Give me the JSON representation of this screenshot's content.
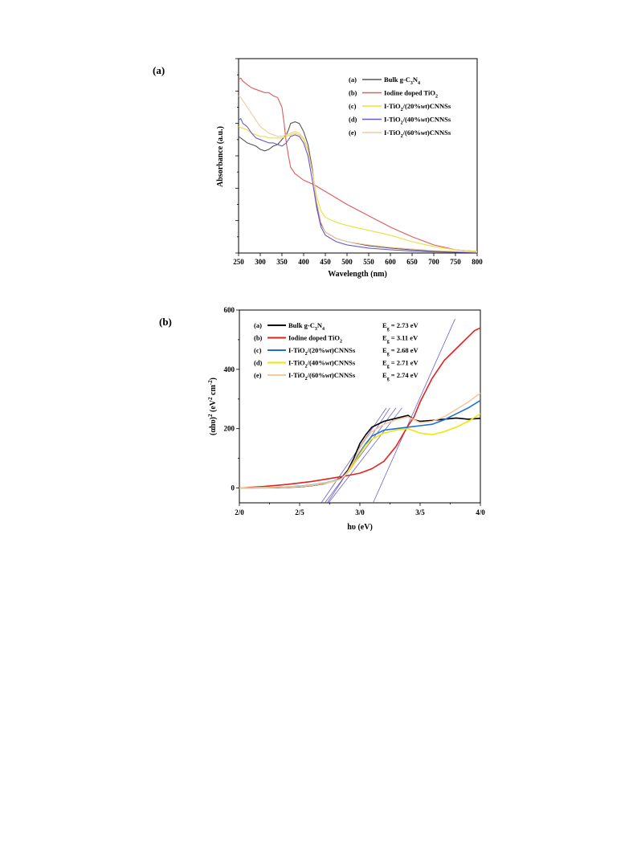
{
  "chart_data": [
    {
      "panel_label": "(a)",
      "type": "line",
      "xlabel": "Wavelength (nm)",
      "ylabel": "Absorbance (a.u.)",
      "xlim": [
        250,
        800
      ],
      "ylim": [
        0,
        1.2
      ],
      "x_ticks": [
        "250",
        "300",
        "350",
        "400",
        "450",
        "500",
        "550",
        "600",
        "650",
        "700",
        "750",
        "800"
      ],
      "y_tick_labels_shown": false,
      "legend_placement": "top-right",
      "series": [
        {
          "key": "(a)",
          "label": "Bulk g-C3N4",
          "label_main": "Bulk g-C",
          "sub1": "3",
          "mid": "N",
          "sub2": "4",
          "tail": "",
          "color": "#555555",
          "x": [
            250,
            260,
            270,
            280,
            290,
            300,
            310,
            320,
            330,
            340,
            350,
            360,
            365,
            370,
            380,
            390,
            400,
            410,
            420,
            430,
            440,
            450,
            475,
            500,
            550,
            600,
            650,
            700,
            750,
            800
          ],
          "y": [
            0.72,
            0.7,
            0.68,
            0.67,
            0.66,
            0.64,
            0.63,
            0.64,
            0.66,
            0.67,
            0.7,
            0.73,
            0.76,
            0.8,
            0.81,
            0.8,
            0.75,
            0.67,
            0.52,
            0.3,
            0.18,
            0.13,
            0.09,
            0.07,
            0.045,
            0.03,
            0.02,
            0.012,
            0.008,
            0.005
          ]
        },
        {
          "key": "(b)",
          "label": "Iodine doped TiO2",
          "label_main": "Iodine doped TiO",
          "sub1": "2",
          "mid": "",
          "sub2": "",
          "tail": "",
          "color": "#e05a5a",
          "x": [
            250,
            255,
            260,
            270,
            280,
            290,
            300,
            310,
            320,
            330,
            340,
            350,
            355,
            360,
            365,
            370,
            380,
            390,
            400,
            425,
            450,
            500,
            550,
            600,
            650,
            700,
            750,
            800
          ],
          "y": [
            1.07,
            1.08,
            1.06,
            1.04,
            1.02,
            1.01,
            1.0,
            0.99,
            0.99,
            0.97,
            0.96,
            0.9,
            0.8,
            0.68,
            0.6,
            0.53,
            0.49,
            0.47,
            0.45,
            0.42,
            0.38,
            0.3,
            0.23,
            0.16,
            0.1,
            0.05,
            0.02,
            0.01
          ]
        },
        {
          "key": "(c)",
          "label": "I-TiO2/(20%wt)CNNSs",
          "label_main": "I-TiO",
          "sub1": "2",
          "mid": "/(20%",
          "sub2": "",
          "tail": "wt",
          "after": ")CNNSs",
          "color": "#e8e23a",
          "x": [
            250,
            260,
            270,
            280,
            290,
            300,
            310,
            320,
            330,
            340,
            350,
            360,
            370,
            380,
            390,
            400,
            410,
            420,
            430,
            440,
            450,
            475,
            500,
            550,
            600,
            650,
            700,
            750,
            800
          ],
          "y": [
            0.78,
            0.77,
            0.76,
            0.74,
            0.73,
            0.72,
            0.72,
            0.71,
            0.71,
            0.71,
            0.71,
            0.72,
            0.73,
            0.74,
            0.73,
            0.7,
            0.63,
            0.5,
            0.35,
            0.26,
            0.22,
            0.19,
            0.17,
            0.14,
            0.11,
            0.07,
            0.04,
            0.02,
            0.01
          ]
        },
        {
          "key": "(d)",
          "label": "I-TiO2/(40%wt)CNNSs",
          "label_main": "I-TiO",
          "sub1": "2",
          "mid": "/(40%",
          "sub2": "",
          "tail": "wt",
          "after": ")CNNSs",
          "color": "#6a5acd",
          "x": [
            250,
            255,
            260,
            270,
            280,
            290,
            300,
            310,
            320,
            330,
            340,
            350,
            360,
            370,
            380,
            390,
            400,
            410,
            420,
            430,
            440,
            450,
            475,
            500,
            550,
            600,
            650,
            700,
            750,
            800
          ],
          "y": [
            0.82,
            0.83,
            0.8,
            0.78,
            0.74,
            0.71,
            0.7,
            0.69,
            0.68,
            0.68,
            0.67,
            0.66,
            0.68,
            0.72,
            0.73,
            0.72,
            0.68,
            0.6,
            0.45,
            0.28,
            0.16,
            0.11,
            0.07,
            0.05,
            0.03,
            0.02,
            0.012,
            0.008,
            0.005,
            0.003
          ]
        },
        {
          "key": "(e)",
          "label": "I-TiO2/(60%wt)CNNSs",
          "label_main": "I-TiO",
          "sub1": "2",
          "mid": "/(60%",
          "sub2": "",
          "tail": "wt",
          "after": ")CNNSs",
          "color": "#f2c9a0",
          "x": [
            250,
            255,
            260,
            270,
            280,
            290,
            300,
            310,
            320,
            330,
            340,
            350,
            360,
            370,
            380,
            390,
            400,
            410,
            420,
            430,
            440,
            450,
            475,
            500,
            550,
            600,
            650,
            700,
            750,
            800
          ],
          "y": [
            0.97,
            0.96,
            0.94,
            0.9,
            0.86,
            0.82,
            0.78,
            0.76,
            0.74,
            0.73,
            0.72,
            0.72,
            0.73,
            0.74,
            0.75,
            0.74,
            0.71,
            0.64,
            0.5,
            0.32,
            0.19,
            0.13,
            0.09,
            0.07,
            0.05,
            0.035,
            0.025,
            0.015,
            0.01,
            0.006
          ]
        }
      ]
    },
    {
      "panel_label": "(b)",
      "type": "line",
      "xlabel": "hυ (eV)",
      "ylabel_main": "(αhυ)",
      "ylabel_sup1": "2",
      "ylabel_mid": " (eV",
      "ylabel_sup2": "2",
      "ylabel_mid2": " cm",
      "ylabel_sup3": "-2",
      "ylabel_end": ")",
      "xlim": [
        2.0,
        4.0
      ],
      "ylim": [
        -50,
        600
      ],
      "x_ticks": [
        {
          "v": 2.0,
          "label": "2/0"
        },
        {
          "v": 2.5,
          "label": "2/5"
        },
        {
          "v": 3.0,
          "label": "3/0"
        },
        {
          "v": 3.5,
          "label": "3/5"
        },
        {
          "v": 4.0,
          "label": "4/0"
        }
      ],
      "y_ticks": [
        {
          "v": 0,
          "label": "0"
        },
        {
          "v": 200,
          "label": "200"
        },
        {
          "v": 400,
          "label": "400"
        },
        {
          "v": 600,
          "label": "600"
        }
      ],
      "legend_placement": "top-left",
      "series": [
        {
          "key": "(a)",
          "label": "Bulk g-C3N4",
          "label_main": "Bulk g-C",
          "sub1": "3",
          "mid": "N",
          "sub2": "4",
          "tail": "",
          "eg": "E",
          "eg_sub": "g",
          "eg_val": " = 2.73 eV",
          "color": "#000000",
          "x": [
            2.0,
            2.3,
            2.5,
            2.6,
            2.7,
            2.8,
            2.85,
            2.9,
            2.95,
            3.0,
            3.05,
            3.1,
            3.2,
            3.3,
            3.4,
            3.45,
            3.5,
            3.6,
            3.7,
            3.8,
            3.9,
            4.0
          ],
          "y": [
            0,
            1,
            4,
            8,
            14,
            25,
            35,
            60,
            100,
            150,
            180,
            205,
            225,
            235,
            245,
            230,
            225,
            228,
            232,
            236,
            232,
            235
          ]
        },
        {
          "key": "(b)",
          "label": "Iodine doped TiO2",
          "label_main": "Iodine doped TiO",
          "sub1": "2",
          "mid": "",
          "sub2": "",
          "tail": "",
          "eg": "E",
          "eg_sub": "g",
          "eg_val": " = 3.11 eV",
          "color": "#e32222",
          "x": [
            2.0,
            2.2,
            2.4,
            2.6,
            2.8,
            2.9,
            3.0,
            3.1,
            3.2,
            3.3,
            3.35,
            3.4,
            3.45,
            3.5,
            3.55,
            3.6,
            3.7,
            3.8,
            3.9,
            3.95,
            4.0
          ],
          "y": [
            0,
            5,
            12,
            22,
            35,
            42,
            50,
            65,
            90,
            140,
            175,
            210,
            240,
            290,
            330,
            370,
            430,
            470,
            510,
            530,
            540
          ]
        },
        {
          "key": "(c)",
          "label": "I-TiO2/(20%wt)CNNSs",
          "label_main": "I-TiO",
          "sub1": "2",
          "mid": "/(20%",
          "sub2": "",
          "tail": "wt",
          "after": ")CNNSs",
          "eg": "E",
          "eg_sub": "g",
          "eg_val": " = 2.68 eV",
          "color": "#1e6fd9",
          "x": [
            2.0,
            2.3,
            2.5,
            2.6,
            2.7,
            2.8,
            2.85,
            2.9,
            2.95,
            3.0,
            3.05,
            3.1,
            3.2,
            3.3,
            3.4,
            3.5,
            3.6,
            3.7,
            3.8,
            3.9,
            4.0
          ],
          "y": [
            0,
            2,
            6,
            10,
            16,
            25,
            33,
            55,
            85,
            120,
            150,
            175,
            195,
            200,
            205,
            210,
            215,
            230,
            250,
            270,
            295
          ]
        },
        {
          "key": "(d)",
          "label": "I-TiO2/(40%wt)CNNSs",
          "label_main": "I-TiO",
          "sub1": "2",
          "mid": "/(40%",
          "sub2": "",
          "tail": "wt",
          "after": ")CNNSs",
          "eg": "E",
          "eg_sub": "g",
          "eg_val": " = 2.71 eV",
          "color": "#f0e600",
          "x": [
            2.0,
            2.3,
            2.5,
            2.6,
            2.7,
            2.8,
            2.85,
            2.9,
            2.95,
            3.0,
            3.05,
            3.1,
            3.2,
            3.3,
            3.4,
            3.5,
            3.6,
            3.7,
            3.8,
            3.9,
            4.0
          ],
          "y": [
            0,
            2,
            5,
            9,
            15,
            24,
            32,
            52,
            80,
            115,
            145,
            165,
            185,
            195,
            200,
            185,
            180,
            190,
            205,
            225,
            250
          ]
        },
        {
          "key": "(e)",
          "label": "I-TiO2/(60%wt)CNNSs",
          "label_main": "I-TiO",
          "sub1": "2",
          "mid": "/(60%",
          "sub2": "",
          "tail": "wt",
          "after": ")CNNSs",
          "eg": "E",
          "eg_sub": "g",
          "eg_val": " = 2.74 eV",
          "color": "#f2c9a0",
          "x": [
            2.0,
            2.3,
            2.5,
            2.6,
            2.7,
            2.8,
            2.85,
            2.9,
            2.95,
            3.0,
            3.05,
            3.1,
            3.2,
            3.3,
            3.4,
            3.5,
            3.6,
            3.7,
            3.8,
            3.9,
            4.0
          ],
          "y": [
            0,
            2,
            5,
            9,
            15,
            24,
            32,
            55,
            90,
            135,
            165,
            190,
            215,
            230,
            240,
            220,
            225,
            240,
            265,
            290,
            320
          ]
        }
      ],
      "tangent_lines": [
        {
          "x": [
            2.73,
            3.25
          ],
          "y": [
            -50,
            270
          ]
        },
        {
          "x": [
            3.11,
            3.79
          ],
          "y": [
            -50,
            570
          ]
        },
        {
          "x": [
            2.68,
            3.22
          ],
          "y": [
            -50,
            270
          ]
        },
        {
          "x": [
            2.71,
            3.3
          ],
          "y": [
            -50,
            270
          ]
        },
        {
          "x": [
            2.74,
            3.35
          ],
          "y": [
            -50,
            270
          ]
        }
      ]
    }
  ]
}
